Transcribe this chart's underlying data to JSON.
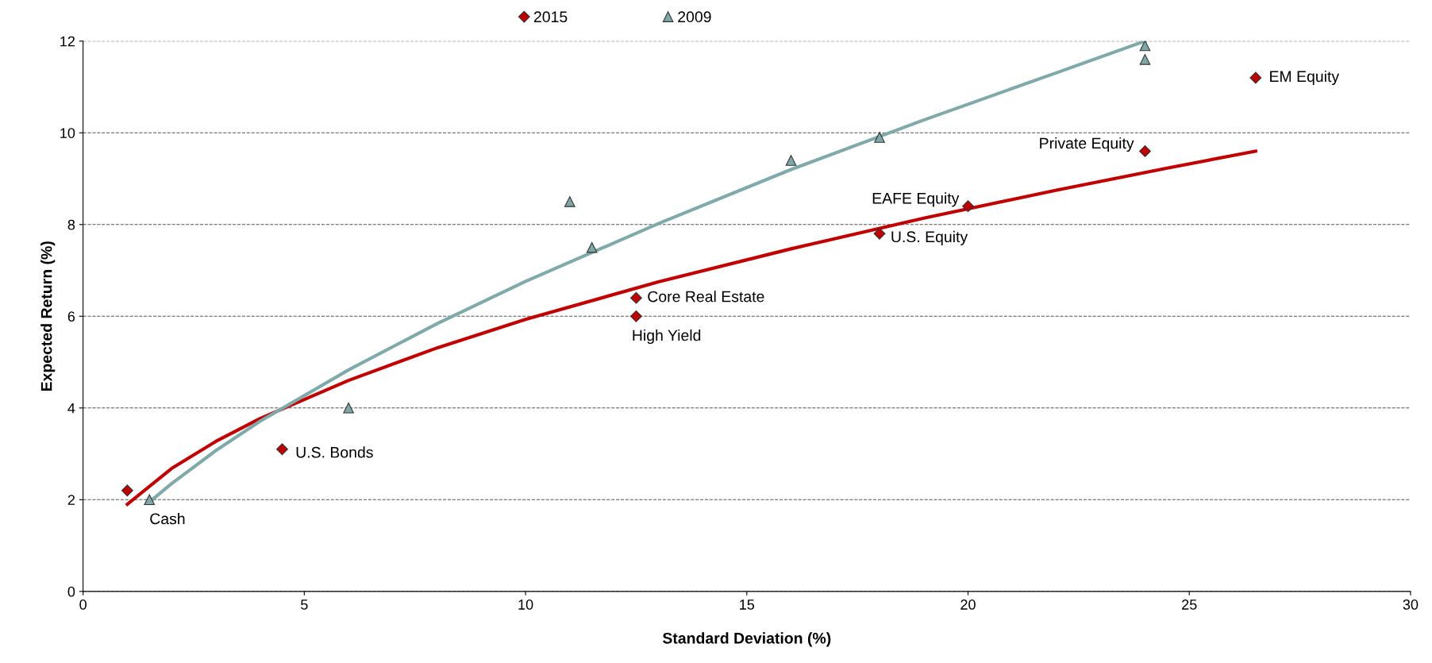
{
  "chart_data": {
    "type": "scatter",
    "xlabel": "Standard Deviation (%)",
    "ylabel": "Expected Return (%)",
    "xlim": [
      0,
      30
    ],
    "xticks": [
      0,
      5,
      10,
      15,
      20,
      25,
      30
    ],
    "ylim": [
      0,
      12
    ],
    "yticks": [
      0,
      2,
      4,
      6,
      8,
      10,
      12
    ],
    "grid": "y",
    "legend": "top",
    "series": [
      {
        "name": "2015",
        "color": "#c00000",
        "marker": "diamond",
        "x": [
          1.0,
          4.5,
          12.5,
          12.5,
          18.0,
          20.0,
          24.0,
          26.5
        ],
        "values": [
          2.2,
          3.1,
          6.4,
          6.0,
          7.8,
          8.4,
          9.6,
          11.2
        ]
      },
      {
        "name": "2009",
        "color": "#7fa7a8",
        "marker": "triangle",
        "x": [
          1.5,
          6.0,
          11.0,
          11.5,
          16.0,
          18.0,
          24.0,
          24.0
        ],
        "values": [
          2.0,
          4.0,
          8.5,
          7.5,
          9.4,
          9.9,
          11.9,
          11.6
        ]
      },
      {
        "type": "line",
        "color": "#c00000",
        "marker": "none",
        "x": [
          1,
          2,
          3,
          4,
          6,
          8,
          10,
          13,
          16,
          19,
          22,
          24.5,
          26.5
        ],
        "values": [
          1.9,
          2.68,
          3.27,
          3.77,
          4.6,
          5.31,
          5.93,
          6.75,
          7.47,
          8.14,
          8.75,
          9.23,
          9.6
        ]
      },
      {
        "type": "line",
        "color": "#7faaa9",
        "marker": "none",
        "x": [
          1.5,
          2,
          3,
          4,
          6,
          8,
          10,
          13,
          16,
          19,
          22,
          24
        ],
        "values": [
          1.95,
          2.35,
          3.07,
          3.71,
          4.83,
          5.84,
          6.76,
          8.02,
          9.2,
          10.28,
          11.31,
          12.0
        ]
      }
    ],
    "annotations": [
      {
        "text": "Cash",
        "x": 1.5,
        "y": 2.0
      },
      {
        "text": "U.S. Bonds",
        "x": 4.5,
        "y": 3.1
      },
      {
        "text": "Core Real Estate",
        "x": 12.5,
        "y": 6.4
      },
      {
        "text": "High Yield",
        "x": 12.5,
        "y": 6.0
      },
      {
        "text": "U.S. Equity",
        "x": 18.0,
        "y": 7.8
      },
      {
        "text": "EAFE Equity",
        "x": 20.0,
        "y": 8.4
      },
      {
        "text": "Private Equity",
        "x": 24.0,
        "y": 9.6
      },
      {
        "text": "EM Equity",
        "x": 26.5,
        "y": 11.2
      }
    ]
  }
}
